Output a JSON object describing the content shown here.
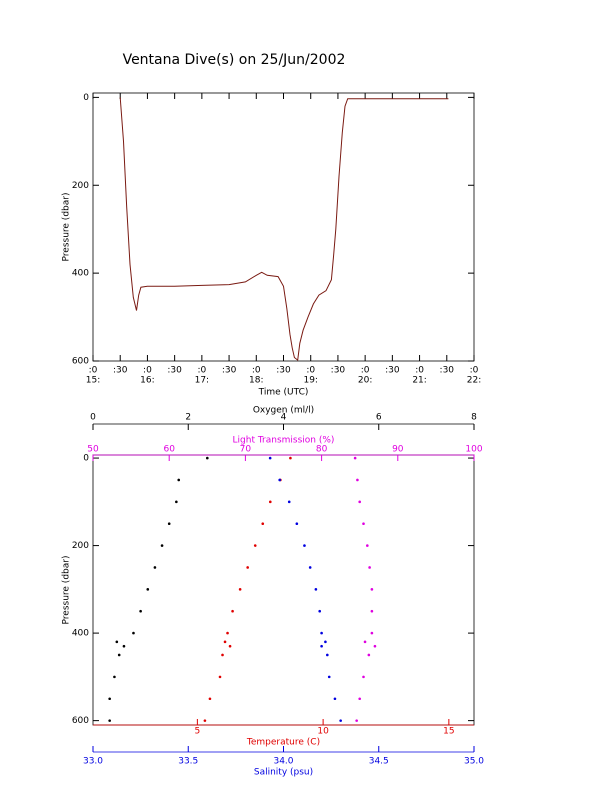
{
  "chart_data": [
    {
      "type": "line",
      "title": "Ventana Dive(s) on 25/Jun/2002",
      "x_label": "Time (UTC)",
      "y_label": "Pressure (dbar)",
      "xlim": [
        15,
        22
      ],
      "xticks": [
        {
          "value": 15,
          "label": ":0"
        },
        {
          "value": 15.5,
          "label": ":30"
        },
        {
          "value": 16,
          "label": ":0"
        },
        {
          "value": 16.5,
          "label": ":30"
        },
        {
          "value": 17,
          "label": ":0"
        },
        {
          "value": 17.5,
          "label": ":30"
        },
        {
          "value": 18,
          "label": ":0"
        },
        {
          "value": 18.5,
          "label": ":30"
        },
        {
          "value": 19,
          "label": ":0"
        },
        {
          "value": 19.5,
          "label": ":30"
        },
        {
          "value": 20,
          "label": ":0"
        },
        {
          "value": 20.5,
          "label": ":30"
        },
        {
          "value": 21,
          "label": ":0"
        },
        {
          "value": 21.5,
          "label": ":30"
        },
        {
          "value": 22,
          "label": ":0"
        }
      ],
      "xtick_hours": [
        {
          "value": 15,
          "label": "15:"
        },
        {
          "value": 16,
          "label": "16:"
        },
        {
          "value": 17,
          "label": "17:"
        },
        {
          "value": 18,
          "label": "18:"
        },
        {
          "value": 19,
          "label": "19:"
        },
        {
          "value": 20,
          "label": "20:"
        },
        {
          "value": 21,
          "label": "21:"
        },
        {
          "value": 22,
          "label": "22:"
        }
      ],
      "ylim": [
        600,
        -10
      ],
      "yticks": [
        0,
        200,
        400,
        600
      ],
      "series": [
        {
          "color": "#7a1a12",
          "x": [
            15.5,
            15.56,
            15.62,
            15.68,
            15.74,
            15.8,
            15.84,
            15.88,
            16,
            16.5,
            17,
            17.5,
            17.8,
            18,
            18.1,
            18.2,
            18.4,
            18.5,
            18.56,
            18.62,
            18.66,
            18.7,
            18.76,
            18.8,
            18.86,
            18.95,
            19.05,
            19.15,
            19.28,
            19.38,
            19.42,
            19.46,
            19.52,
            19.58,
            19.63,
            19.68,
            20,
            20.5,
            21,
            21.53
          ],
          "values": [
            0,
            100,
            250,
            380,
            455,
            485,
            450,
            432,
            430,
            430,
            428,
            426,
            420,
            405,
            398,
            405,
            408,
            430,
            480,
            540,
            570,
            592,
            598,
            560,
            530,
            500,
            470,
            450,
            440,
            415,
            360,
            300,
            180,
            80,
            20,
            3,
            3,
            3,
            3,
            3
          ]
        }
      ]
    },
    {
      "type": "scatter",
      "y_label": "Pressure (dbar)",
      "ylim": [
        610,
        -7
      ],
      "yticks": [
        0,
        200,
        400,
        600
      ],
      "x_axes": [
        {
          "label": "Oxygen (ml/l)",
          "position": "top",
          "color": "#000000",
          "xlim": [
            0,
            8
          ],
          "xticks": [
            0,
            2,
            4,
            6,
            8
          ]
        },
        {
          "label": "Light Transmission (%)",
          "position": "top",
          "color": "#e000e0",
          "xlim": [
            50,
            100
          ],
          "xticks": [
            50,
            60,
            70,
            80,
            90,
            100
          ]
        },
        {
          "label": "Temperature (C)",
          "position": "bottom",
          "color": "#e00000",
          "xlim": [
            0.85,
            16
          ],
          "xticks": [
            5,
            10,
            15
          ]
        },
        {
          "label": "Salinity (psu)",
          "position": "bottom",
          "color": "#0000e0",
          "xlim": [
            33,
            35
          ],
          "xticks": [
            {
              "value": 33,
              "label": "33.0"
            },
            33.5,
            {
              "value": 34,
              "label": "34.0"
            },
            34.5,
            {
              "value": 35,
              "label": "35.0"
            }
          ]
        }
      ],
      "series": [
        {
          "axis": 0,
          "color": "#000000",
          "x": [
            2.4,
            1.8,
            1.75,
            1.6,
            1.45,
            1.3,
            1.15,
            1.0,
            0.85,
            0.5,
            0.65,
            0.55,
            0.45,
            0.35,
            0.35
          ],
          "values": [
            0,
            50,
            100,
            150,
            200,
            250,
            300,
            350,
            400,
            420,
            430,
            450,
            500,
            550,
            600
          ]
        },
        {
          "axis": 1,
          "color": "#e000e0",
          "x": [
            84.4,
            84.7,
            85,
            85.5,
            86,
            86.3,
            86.6,
            86.6,
            86.6,
            85.7,
            87,
            86.2,
            85.5,
            85,
            84.6
          ],
          "values": [
            0,
            50,
            100,
            150,
            200,
            250,
            300,
            350,
            400,
            420,
            430,
            450,
            500,
            550,
            600
          ]
        },
        {
          "axis": 2,
          "color": "#e00000",
          "x": [
            8.7,
            8.3,
            7.9,
            7.6,
            7.3,
            7.0,
            6.7,
            6.4,
            6.2,
            6.1,
            6.3,
            6.0,
            5.9,
            5.5,
            5.3
          ],
          "values": [
            0,
            50,
            100,
            150,
            200,
            250,
            300,
            350,
            400,
            420,
            430,
            450,
            500,
            550,
            600
          ]
        },
        {
          "axis": 3,
          "color": "#0000e0",
          "x": [
            33.93,
            33.98,
            34.03,
            34.07,
            34.11,
            34.14,
            34.17,
            34.19,
            34.2,
            34.22,
            34.2,
            34.23,
            34.24,
            34.27,
            34.3
          ],
          "values": [
            0,
            50,
            100,
            150,
            200,
            250,
            300,
            350,
            400,
            420,
            430,
            450,
            500,
            550,
            600
          ]
        }
      ]
    }
  ]
}
